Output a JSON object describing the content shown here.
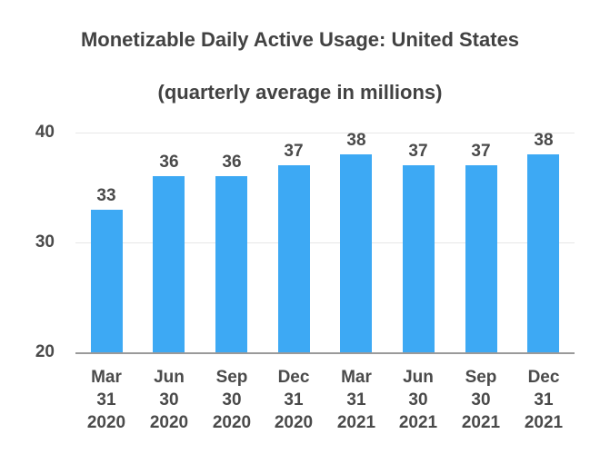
{
  "chart_data": {
    "type": "bar",
    "title": "Monetizable Daily Active Usage: United States",
    "subtitle": "(quarterly average in millions)",
    "categories": [
      "Mar 31 2020",
      "Jun 30 2020",
      "Sep 30 2020",
      "Dec 31 2020",
      "Mar 31 2021",
      "Jun 30 2021",
      "Sep 30 2021",
      "Dec 31 2021"
    ],
    "values": [
      33,
      36,
      36,
      37,
      38,
      37,
      37,
      38
    ],
    "xlabel": "",
    "ylabel": "",
    "ylim": [
      20,
      42
    ],
    "yticks": [
      20,
      30,
      40
    ],
    "grid": "horizontal-only",
    "legend": "none",
    "data_labels": true
  },
  "colors": {
    "bar": "#3DA9F4",
    "gridline": "#E7E7E7",
    "axis_line": "#9A9A9A",
    "title_text": "#424242",
    "label_text": "#4A4A4A",
    "background": "#FFFFFF"
  }
}
